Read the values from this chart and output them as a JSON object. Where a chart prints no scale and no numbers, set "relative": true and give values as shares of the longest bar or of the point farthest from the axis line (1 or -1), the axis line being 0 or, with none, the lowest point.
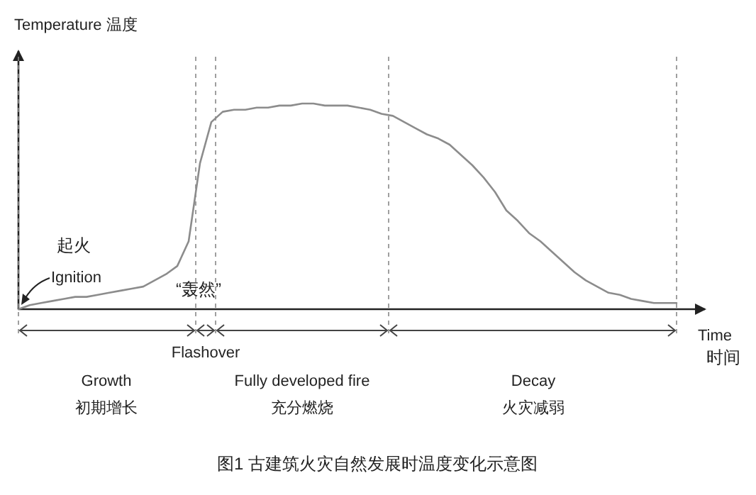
{
  "chart_data": {
    "type": "line",
    "relative": true,
    "title": "图1 古建筑火灾自然发展时温度变化示意图",
    "ylabel": "Temperature 温度",
    "xlabel": "Time\n时间",
    "categories": [
      null,
      null,
      null,
      null,
      null,
      null,
      null,
      null,
      null,
      null,
      null,
      null,
      null,
      null,
      null,
      null,
      null,
      null,
      null,
      null,
      null,
      null,
      null,
      null,
      null,
      null,
      null,
      null,
      null,
      null,
      null,
      null,
      null,
      null,
      null,
      null,
      null,
      null,
      null,
      null,
      null,
      null,
      null,
      null,
      null,
      null,
      null,
      null,
      null,
      null,
      null,
      null,
      null,
      null,
      null,
      null,
      null,
      null,
      null
    ],
    "series": [
      {
        "color": "#8c8c8c",
        "values": [
          0,
          0.02,
          0.03,
          0.04,
          0.05,
          0.06,
          0.06,
          0.07,
          0.08,
          0.09,
          0.1,
          0.11,
          0.14,
          0.17,
          0.21,
          0.33,
          0.71,
          0.91,
          0.96,
          0.97,
          0.97,
          0.98,
          0.98,
          0.99,
          0.99,
          1.0,
          1.0,
          0.99,
          0.99,
          0.99,
          0.98,
          0.97,
          0.95,
          0.94,
          0.91,
          0.88,
          0.85,
          0.83,
          0.8,
          0.75,
          0.7,
          0.64,
          0.57,
          0.48,
          0.43,
          0.37,
          0.33,
          0.28,
          0.23,
          0.18,
          0.14,
          0.11,
          0.08,
          0.07,
          0.05,
          0.04,
          0.03,
          0.03,
          0.03
        ]
      }
    ],
    "annotations": [
      "起火",
      "Ignition",
      "“轰然”",
      "Flashover",
      "Growth",
      "初期增长",
      "Fully developed fire",
      "充分燃烧",
      "Decay",
      "火灾减弱"
    ],
    "line_style": "solid",
    "marker": "none"
  }
}
